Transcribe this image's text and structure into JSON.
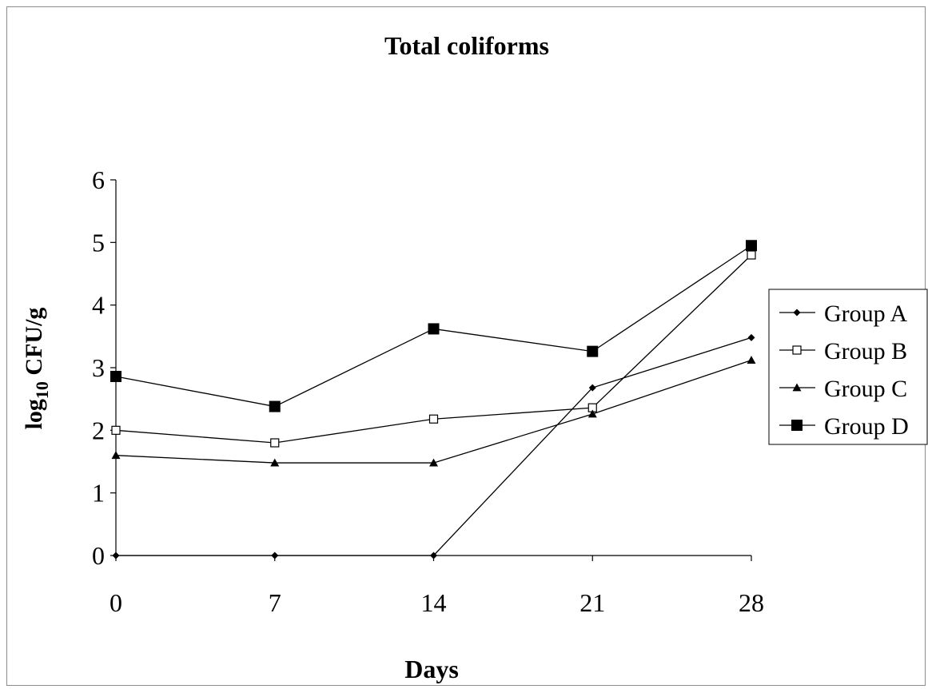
{
  "chart_data": {
    "type": "line",
    "title": "Total coliforms",
    "xlabel": "Days",
    "ylabel": {
      "prefix": "log",
      "subscript": "10",
      "suffix": " CFU/g"
    },
    "x": [
      0,
      7,
      14,
      21,
      28
    ],
    "x_ticks": [
      "0",
      "7",
      "14",
      "21",
      "28"
    ],
    "ylim": [
      0,
      6
    ],
    "y_ticks": [
      "0",
      "1",
      "2",
      "3",
      "4",
      "5",
      "6"
    ],
    "grid": false,
    "legend_position": "right",
    "series": [
      {
        "name": "Group A",
        "marker": "diamond",
        "values": [
          0,
          0,
          0,
          2.68,
          3.48
        ]
      },
      {
        "name": "Group B",
        "marker": "open-square",
        "values": [
          2.0,
          1.8,
          2.18,
          2.36,
          4.8
        ]
      },
      {
        "name": "Group C",
        "marker": "triangle",
        "values": [
          1.6,
          1.48,
          1.48,
          2.26,
          3.12
        ]
      },
      {
        "name": "Group D",
        "marker": "filled-square",
        "values": [
          2.86,
          2.38,
          3.62,
          3.26,
          4.95
        ]
      }
    ]
  }
}
